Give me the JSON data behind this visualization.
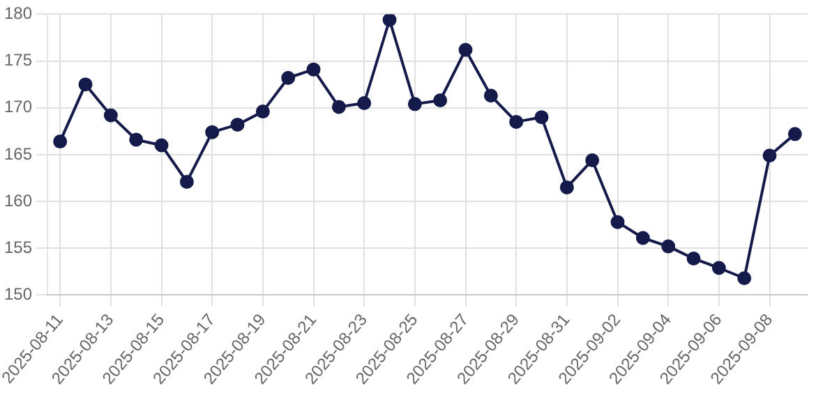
{
  "chart_data": {
    "type": "line",
    "categories": [
      "2025-08-11",
      null,
      "2025-08-13",
      null,
      "2025-08-15",
      null,
      "2025-08-17",
      null,
      "2025-08-19",
      null,
      "2025-08-21",
      null,
      "2025-08-23",
      null,
      "2025-08-25",
      null,
      "2025-08-27",
      null,
      "2025-08-29",
      null,
      "2025-08-31",
      null,
      "2025-09-02",
      null,
      "2025-09-04",
      null,
      "2025-09-06",
      null,
      "2025-09-08",
      null
    ],
    "series": [
      {
        "color": "#141a4a",
        "values": [
          166.4,
          172.5,
          169.2,
          166.6,
          166.0,
          162.1,
          167.4,
          168.2,
          169.6,
          173.2,
          174.1,
          170.1,
          170.5,
          179.4,
          170.4,
          170.8,
          176.2,
          171.3,
          168.5,
          169.0,
          161.5,
          164.4,
          157.8,
          156.1,
          155.2,
          153.9,
          152.9,
          151.8,
          164.9,
          167.2
        ]
      }
    ],
    "ylim": [
      150,
      180
    ],
    "yticks": [
      150,
      155,
      160,
      165,
      170,
      175,
      180
    ],
    "grid": true,
    "marker": "circle",
    "line_style": "solid",
    "legend": false
  }
}
